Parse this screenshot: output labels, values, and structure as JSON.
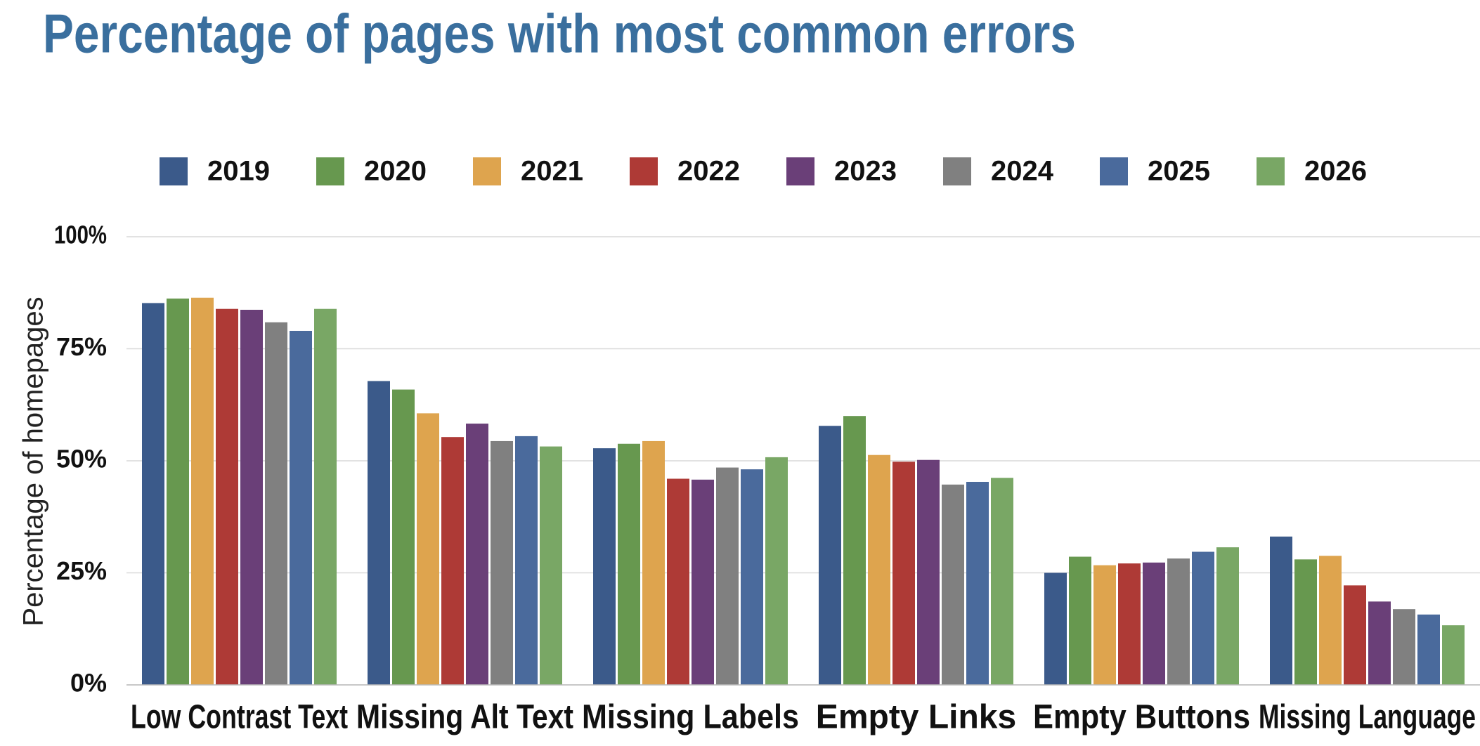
{
  "chart_data": {
    "type": "bar",
    "title": "Percentage of pages with most common errors",
    "y_label": "Percentage of homepages",
    "categories": [
      "Low Contrast Text",
      "Missing Alt Text",
      "Missing Labels",
      "Empty Links",
      "Empty Buttons",
      "Missing Language"
    ],
    "series": [
      {
        "name": "2019",
        "color": "#3b5a8a",
        "values": [
          85.2,
          67.8,
          52.8,
          57.8,
          25.0,
          33.1
        ]
      },
      {
        "name": "2020",
        "color": "#67984f",
        "values": [
          86.2,
          65.9,
          53.8,
          60.0,
          28.6,
          28.0
        ]
      },
      {
        "name": "2021",
        "color": "#dea44e",
        "values": [
          86.4,
          60.6,
          54.4,
          51.3,
          26.7,
          28.8
        ]
      },
      {
        "name": "2022",
        "color": "#ae3a36",
        "values": [
          83.9,
          55.3,
          46.0,
          49.8,
          27.1,
          22.2
        ]
      },
      {
        "name": "2023",
        "color": "#6a3f78",
        "values": [
          83.7,
          58.3,
          45.8,
          50.2,
          27.3,
          18.6
        ]
      },
      {
        "name": "2024",
        "color": "#808080",
        "values": [
          80.9,
          54.4,
          48.5,
          44.7,
          28.2,
          16.9
        ]
      },
      {
        "name": "2025",
        "color": "#4a6a9c",
        "values": [
          79.0,
          55.5,
          48.1,
          45.3,
          29.7,
          15.7
        ]
      },
      {
        "name": "2026",
        "color": "#79a765",
        "values": [
          83.9,
          53.2,
          50.8,
          46.2,
          30.7,
          13.3
        ]
      }
    ],
    "ylim": [
      0,
      100
    ],
    "yticks": [
      {
        "value": 0,
        "label": "0%"
      },
      {
        "value": 25,
        "label": "25%"
      },
      {
        "value": 50,
        "label": "50%"
      },
      {
        "value": 75,
        "label": "75%"
      },
      {
        "value": 100,
        "label": "100%"
      }
    ],
    "grid": true,
    "legend": "top"
  }
}
